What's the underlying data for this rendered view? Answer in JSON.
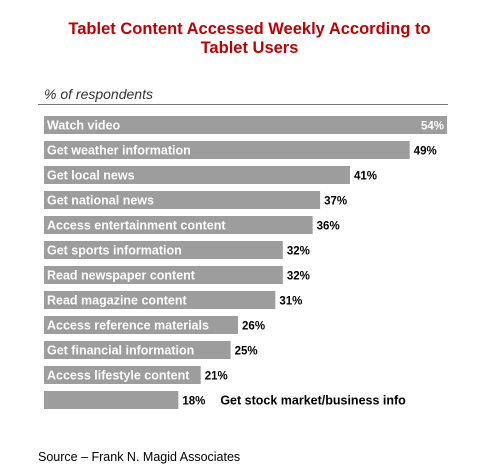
{
  "colors": {
    "title": "#c00000",
    "bar": "#9d9d9d"
  },
  "source": "Source – Frank N. Magid Associates",
  "chart_data": {
    "type": "bar",
    "orientation": "horizontal",
    "title": "Tablet Content Accessed Weekly According to\nTablet Users",
    "subtitle": "% of respondents",
    "categories": [
      "Watch video",
      "Get weather information",
      "Get local news",
      "Get national news",
      "Access entertainment content",
      "Get sports information",
      "Read newspaper content",
      "Read magazine content",
      "Access reference materials",
      "Get financial information",
      "Access lifestyle content",
      "Get stock market/business info"
    ],
    "values": [
      54,
      49,
      41,
      37,
      36,
      32,
      32,
      31,
      26,
      25,
      21,
      18
    ],
    "value_labels": [
      "54%",
      "49%",
      "41%",
      "37%",
      "36%",
      "32%",
      "32%",
      "31%",
      "26%",
      "25%",
      "21%",
      "18%"
    ],
    "xlim": [
      0,
      54
    ],
    "grid": false,
    "legend": "none"
  }
}
